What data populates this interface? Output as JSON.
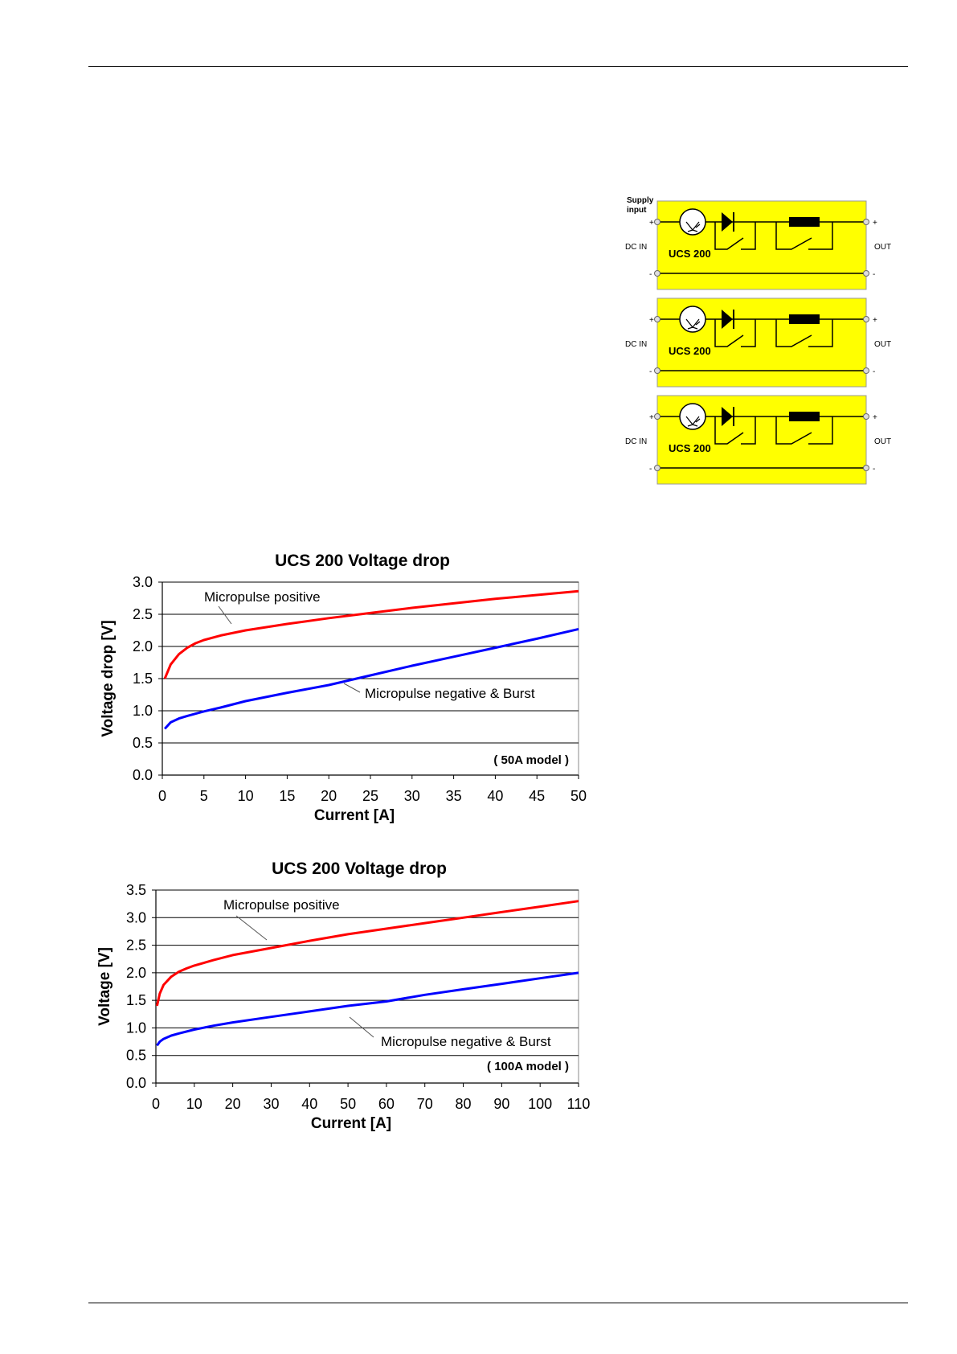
{
  "diagram": {
    "supply_label": "Supply input",
    "blocks": [
      {
        "name": "UCS 200",
        "in_label": "DC IN",
        "out_label": "OUT",
        "plus": "+",
        "minus": "-"
      },
      {
        "name": "UCS 200",
        "in_label": "DC IN",
        "out_label": "OUT",
        "plus": "+",
        "minus": "-"
      },
      {
        "name": "UCS 200",
        "in_label": "DC IN",
        "out_label": "OUT",
        "plus": "+",
        "minus": "-"
      }
    ],
    "colors": {
      "fill": "#ffff00",
      "stroke": "#000000"
    }
  },
  "chart_data": [
    {
      "type": "line",
      "title": "UCS 200 Voltage drop",
      "xlabel": "Current [A]",
      "ylabel": "Voltage drop [V]",
      "xlim": [
        0,
        50
      ],
      "ylim": [
        0,
        3
      ],
      "xticks": [
        "0",
        "5",
        "10",
        "15",
        "20",
        "25",
        "30",
        "35",
        "40",
        "45",
        "50"
      ],
      "yticks": [
        "0.0",
        "0.5",
        "1.0",
        "1.5",
        "2.0",
        "2.5",
        "3.0"
      ],
      "grid": "horizontal",
      "note": "( 50A model )",
      "series": [
        {
          "name": "Micropulse positive",
          "color": "#ff0000",
          "x": [
            0.3,
            1,
            2,
            3,
            4,
            5,
            7,
            10,
            15,
            20,
            25,
            30,
            35,
            40,
            45,
            50
          ],
          "y": [
            1.5,
            1.72,
            1.88,
            1.98,
            2.05,
            2.1,
            2.17,
            2.25,
            2.35,
            2.44,
            2.52,
            2.6,
            2.67,
            2.74,
            2.8,
            2.86
          ]
        },
        {
          "name": "Micropulse  negative  &  Burst",
          "color": "#0000ff",
          "x": [
            0.3,
            1,
            2,
            3,
            5,
            7,
            10,
            15,
            20,
            25,
            30,
            35,
            40,
            45,
            50
          ],
          "y": [
            0.72,
            0.82,
            0.88,
            0.92,
            0.99,
            1.05,
            1.15,
            1.28,
            1.4,
            1.55,
            1.7,
            1.84,
            1.98,
            2.12,
            2.27
          ]
        }
      ]
    },
    {
      "type": "line",
      "title": "UCS 200 Voltage drop",
      "xlabel": "Current [A]",
      "ylabel": "Voltage [V]",
      "xlim": [
        0,
        110
      ],
      "ylim": [
        0,
        3.5
      ],
      "xticks": [
        "0",
        "10",
        "20",
        "30",
        "40",
        "50",
        "60",
        "70",
        "80",
        "90",
        "100",
        "110"
      ],
      "yticks": [
        "0.0",
        "0.5",
        "1.0",
        "1.5",
        "2.0",
        "2.5",
        "3.0",
        "3.5"
      ],
      "grid": "horizontal",
      "note": "( 100A model )",
      "series": [
        {
          "name": "Micropulse positive",
          "color": "#ff0000",
          "x": [
            0.3,
            1,
            2,
            4,
            6,
            8,
            10,
            15,
            20,
            30,
            40,
            50,
            60,
            70,
            80,
            90,
            100,
            110
          ],
          "y": [
            1.4,
            1.62,
            1.78,
            1.93,
            2.02,
            2.08,
            2.13,
            2.23,
            2.32,
            2.45,
            2.58,
            2.7,
            2.8,
            2.9,
            3.0,
            3.1,
            3.2,
            3.3
          ]
        },
        {
          "name": "Micropulse  negative  &  Burst",
          "color": "#0000ff",
          "x": [
            0.3,
            1,
            2,
            4,
            6,
            10,
            15,
            20,
            30,
            40,
            50,
            60,
            70,
            80,
            90,
            100,
            110
          ],
          "y": [
            0.68,
            0.75,
            0.8,
            0.86,
            0.9,
            0.97,
            1.04,
            1.1,
            1.2,
            1.3,
            1.4,
            1.48,
            1.6,
            1.7,
            1.8,
            1.9,
            2.0
          ]
        }
      ]
    }
  ]
}
